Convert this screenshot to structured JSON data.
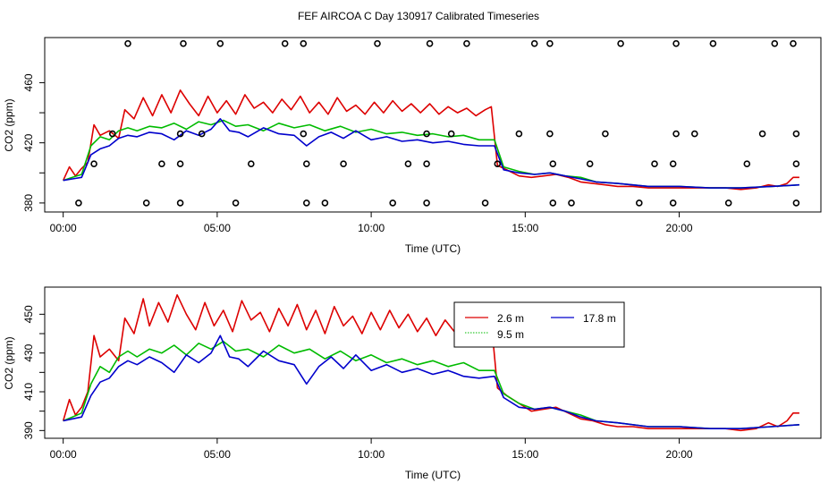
{
  "title": "FEF AIRCOA C  Day 130917  Calibrated Timeseries",
  "colors": {
    "s26": "#dd0000",
    "s95": "#00bb00",
    "s178": "#0000cc",
    "axis": "#000000"
  },
  "chart_data": [
    {
      "type": "line+scatter",
      "xlabel": "Time (UTC)",
      "ylabel": "CO2 (ppm)",
      "xlim": [
        -0.6,
        24.6
      ],
      "ylim": [
        374,
        490
      ],
      "x_ticks": [
        0,
        5,
        10,
        15,
        20
      ],
      "x_tick_labels": [
        "00:00",
        "05:00",
        "10:00",
        "15:00",
        "20:00"
      ],
      "y_ticks": [
        380,
        420,
        460
      ],
      "y_tick_labels": [
        "380",
        "420",
        "460"
      ],
      "y_minor_ticks": [
        400,
        440
      ],
      "series": [
        {
          "name": "2.6 m",
          "color": "#dd0000",
          "x": [
            0.0,
            0.2,
            0.4,
            0.6,
            0.8,
            1.0,
            1.2,
            1.5,
            1.8,
            2.0,
            2.3,
            2.6,
            2.9,
            3.2,
            3.5,
            3.8,
            4.1,
            4.4,
            4.7,
            5.0,
            5.3,
            5.6,
            5.9,
            6.2,
            6.5,
            6.8,
            7.1,
            7.4,
            7.7,
            8.0,
            8.3,
            8.6,
            8.9,
            9.2,
            9.5,
            9.8,
            10.1,
            10.4,
            10.7,
            11.0,
            11.3,
            11.6,
            11.9,
            12.2,
            12.5,
            12.8,
            13.1,
            13.4,
            13.7,
            13.9,
            14.1,
            14.4,
            14.8,
            15.2,
            15.6,
            16.0,
            16.4,
            16.8,
            17.2,
            17.6,
            18.0,
            18.5,
            19.0,
            19.5,
            20.0,
            20.5,
            21.0,
            21.5,
            22.0,
            22.5,
            22.9,
            23.2,
            23.5,
            23.7,
            23.9
          ],
          "y": [
            395,
            404,
            398,
            403,
            407,
            432,
            425,
            428,
            423,
            442,
            436,
            450,
            438,
            452,
            440,
            455,
            446,
            438,
            451,
            440,
            448,
            439,
            452,
            443,
            447,
            440,
            449,
            442,
            451,
            440,
            447,
            439,
            450,
            441,
            445,
            439,
            447,
            440,
            448,
            441,
            446,
            440,
            446,
            439,
            444,
            440,
            443,
            438,
            442,
            444,
            405,
            402,
            398,
            397,
            398,
            399,
            397,
            394,
            393,
            392,
            391,
            391,
            390,
            390,
            390,
            390,
            390,
            390,
            389,
            390,
            392,
            391,
            393,
            397,
            397
          ]
        },
        {
          "name": "9.5 m",
          "color": "#00bb00",
          "x": [
            0.0,
            0.3,
            0.6,
            0.9,
            1.2,
            1.5,
            1.8,
            2.1,
            2.4,
            2.8,
            3.2,
            3.6,
            4.0,
            4.4,
            4.8,
            5.2,
            5.6,
            6.0,
            6.5,
            7.0,
            7.5,
            8.0,
            8.5,
            9.0,
            9.5,
            10.0,
            10.5,
            11.0,
            11.5,
            12.0,
            12.5,
            13.0,
            13.5,
            14.0,
            14.3,
            14.8,
            15.3,
            15.8,
            16.3,
            16.8,
            17.3,
            18.0,
            19.0,
            20.0,
            21.0,
            22.0,
            23.0,
            23.9
          ],
          "y": [
            395,
            397,
            399,
            418,
            424,
            422,
            428,
            430,
            428,
            431,
            430,
            433,
            429,
            434,
            432,
            435,
            431,
            432,
            428,
            433,
            430,
            432,
            428,
            431,
            427,
            429,
            426,
            427,
            425,
            426,
            424,
            425,
            422,
            422,
            404,
            401,
            399,
            400,
            398,
            397,
            394,
            393,
            391,
            391,
            390,
            390,
            391,
            392
          ]
        },
        {
          "name": "17.8 m",
          "color": "#0000cc",
          "x": [
            0.0,
            0.3,
            0.6,
            0.9,
            1.2,
            1.5,
            1.8,
            2.1,
            2.4,
            2.8,
            3.2,
            3.6,
            4.0,
            4.4,
            4.8,
            5.1,
            5.4,
            5.7,
            6.0,
            6.5,
            7.0,
            7.5,
            7.9,
            8.3,
            8.7,
            9.1,
            9.5,
            10.0,
            10.5,
            11.0,
            11.5,
            12.0,
            12.5,
            13.0,
            13.5,
            14.0,
            14.3,
            14.8,
            15.3,
            15.8,
            16.3,
            16.8,
            17.3,
            18.0,
            19.0,
            20.0,
            21.0,
            22.0,
            23.0,
            23.9
          ],
          "y": [
            395,
            396,
            397,
            412,
            416,
            418,
            423,
            425,
            424,
            427,
            426,
            422,
            428,
            425,
            429,
            436,
            428,
            427,
            424,
            430,
            426,
            425,
            418,
            424,
            427,
            423,
            428,
            422,
            424,
            421,
            422,
            420,
            421,
            419,
            418,
            418,
            402,
            400,
            399,
            400,
            398,
            396,
            394,
            393,
            391,
            391,
            390,
            390,
            391,
            392
          ]
        }
      ],
      "flags": [
        {
          "y": 486,
          "x": [
            2.1,
            3.9,
            5.1,
            7.2,
            7.8,
            10.2,
            11.9,
            13.1,
            15.3,
            15.8,
            18.1,
            19.9,
            21.1,
            23.1,
            23.7
          ]
        },
        {
          "y": 426,
          "x": [
            1.6,
            3.8,
            4.5,
            7.8,
            11.8,
            12.6,
            14.8,
            15.8,
            17.6,
            19.9,
            20.5,
            22.7,
            23.8
          ]
        },
        {
          "y": 406,
          "x": [
            1.0,
            3.2,
            3.8,
            6.1,
            7.9,
            9.1,
            11.2,
            11.8,
            14.1,
            15.9,
            17.1,
            19.2,
            19.8,
            22.2,
            23.8
          ]
        },
        {
          "y": 380,
          "x": [
            0.5,
            2.7,
            3.8,
            5.6,
            7.9,
            8.5,
            10.7,
            11.8,
            13.7,
            15.9,
            16.5,
            18.7,
            19.8,
            21.6,
            23.8
          ]
        }
      ]
    },
    {
      "type": "line",
      "xlabel": "Time (UTC)",
      "ylabel": "CO2 (ppm)",
      "xlim": [
        -0.6,
        24.6
      ],
      "ylim": [
        386,
        464
      ],
      "x_ticks": [
        0,
        5,
        10,
        15,
        20
      ],
      "x_tick_labels": [
        "00:00",
        "05:00",
        "10:00",
        "15:00",
        "20:00"
      ],
      "y_ticks": [
        390,
        410,
        430,
        450
      ],
      "y_tick_labels": [
        "390",
        "410",
        "430",
        "450"
      ],
      "y_minor_ticks": [
        400,
        420,
        440
      ],
      "legend": {
        "position": "top-center",
        "entries": [
          "2.6 m",
          "17.8 m",
          "9.5 m"
        ]
      },
      "series": [
        {
          "name": "2.6 m",
          "color": "#dd0000",
          "x": [
            0.0,
            0.2,
            0.4,
            0.6,
            0.8,
            1.0,
            1.2,
            1.5,
            1.8,
            2.0,
            2.3,
            2.6,
            2.8,
            3.1,
            3.4,
            3.7,
            4.0,
            4.3,
            4.6,
            4.9,
            5.2,
            5.5,
            5.8,
            6.1,
            6.4,
            6.7,
            7.0,
            7.3,
            7.6,
            7.9,
            8.2,
            8.5,
            8.8,
            9.1,
            9.4,
            9.7,
            10.0,
            10.3,
            10.6,
            10.9,
            11.2,
            11.5,
            11.8,
            12.1,
            12.4,
            12.7,
            13.0,
            13.3,
            13.6,
            13.9,
            14.1,
            14.4,
            14.8,
            15.2,
            15.6,
            16.0,
            16.4,
            16.8,
            17.2,
            17.6,
            18.0,
            18.5,
            19.0,
            19.5,
            20.0,
            20.5,
            21.0,
            21.5,
            22.0,
            22.5,
            22.9,
            23.2,
            23.5,
            23.7,
            23.9
          ],
          "y": [
            395,
            406,
            398,
            402,
            410,
            439,
            428,
            432,
            426,
            448,
            440,
            458,
            444,
            456,
            446,
            460,
            450,
            442,
            456,
            444,
            452,
            441,
            457,
            447,
            451,
            441,
            453,
            444,
            455,
            442,
            452,
            440,
            454,
            444,
            449,
            440,
            451,
            442,
            452,
            443,
            450,
            441,
            448,
            439,
            447,
            441,
            445,
            438,
            444,
            446,
            412,
            408,
            404,
            400,
            401,
            402,
            399,
            396,
            395,
            393,
            392,
            392,
            391,
            391,
            391,
            391,
            391,
            391,
            390,
            391,
            394,
            392,
            395,
            399,
            399
          ]
        },
        {
          "name": "9.5 m",
          "color": "#00bb00",
          "x": [
            0.0,
            0.3,
            0.6,
            0.9,
            1.2,
            1.5,
            1.8,
            2.1,
            2.4,
            2.8,
            3.2,
            3.6,
            4.0,
            4.4,
            4.8,
            5.2,
            5.6,
            6.0,
            6.5,
            7.0,
            7.5,
            8.0,
            8.5,
            9.0,
            9.5,
            10.0,
            10.5,
            11.0,
            11.5,
            12.0,
            12.5,
            13.0,
            13.5,
            14.0,
            14.3,
            14.8,
            15.3,
            15.8,
            16.3,
            16.8,
            17.3,
            18.0,
            19.0,
            20.0,
            21.0,
            22.0,
            23.0,
            23.9
          ],
          "y": [
            395,
            397,
            399,
            414,
            423,
            420,
            428,
            431,
            428,
            432,
            430,
            434,
            429,
            435,
            432,
            436,
            431,
            432,
            428,
            434,
            430,
            432,
            427,
            431,
            426,
            429,
            425,
            427,
            424,
            426,
            423,
            425,
            421,
            421,
            409,
            404,
            401,
            402,
            400,
            398,
            395,
            394,
            392,
            392,
            391,
            391,
            392,
            393
          ]
        },
        {
          "name": "17.8 m",
          "color": "#0000cc",
          "x": [
            0.0,
            0.3,
            0.6,
            0.9,
            1.2,
            1.5,
            1.8,
            2.1,
            2.4,
            2.8,
            3.2,
            3.6,
            4.0,
            4.4,
            4.8,
            5.1,
            5.4,
            5.7,
            6.0,
            6.5,
            7.0,
            7.5,
            7.9,
            8.3,
            8.7,
            9.1,
            9.5,
            10.0,
            10.5,
            11.0,
            11.5,
            12.0,
            12.5,
            13.0,
            13.5,
            14.0,
            14.3,
            14.8,
            15.3,
            15.8,
            16.3,
            16.8,
            17.3,
            18.0,
            19.0,
            20.0,
            21.0,
            22.0,
            23.0,
            23.9
          ],
          "y": [
            395,
            396,
            397,
            408,
            415,
            417,
            423,
            426,
            424,
            428,
            425,
            420,
            429,
            425,
            430,
            439,
            428,
            427,
            423,
            431,
            426,
            424,
            414,
            423,
            428,
            422,
            429,
            421,
            424,
            420,
            422,
            419,
            421,
            418,
            417,
            418,
            407,
            402,
            401,
            402,
            400,
            397,
            395,
            394,
            392,
            392,
            391,
            391,
            392,
            393
          ]
        }
      ]
    }
  ]
}
